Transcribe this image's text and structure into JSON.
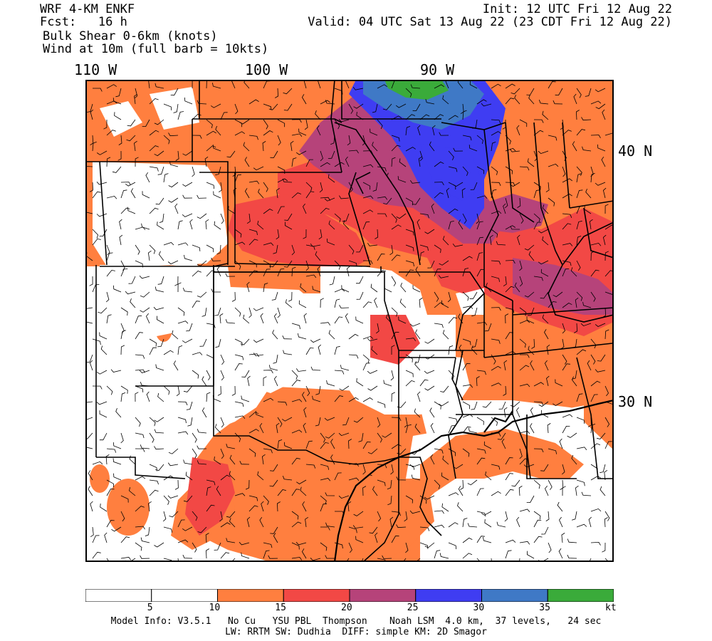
{
  "header": {
    "model": "WRF 4-KM ENKF",
    "forecast_hour": "Fcst:   16 h",
    "field_line1": "Bulk Shear 0-6km (knots)",
    "field_line2": "Wind at 10m (full barb = 10kts)",
    "init": "Init: 12 UTC Fri 12 Aug 22",
    "valid": "Valid: 04 UTC Sat 13 Aug 22 (23 CDT Fri 12 Aug 22)"
  },
  "map": {
    "lon_labels": [
      "110 W",
      "100 W",
      "90 W"
    ],
    "lat_labels": [
      "40 N",
      "30 N"
    ]
  },
  "legend": {
    "bins": [
      {
        "from": 0,
        "to": 5,
        "color": "#ffffff"
      },
      {
        "from": 5,
        "to": 10,
        "color": "#ffffff"
      },
      {
        "from": 10,
        "to": 15,
        "color": "#ff7f3f"
      },
      {
        "from": 15,
        "to": 20,
        "color": "#f24845"
      },
      {
        "from": 20,
        "to": 25,
        "color": "#b6437a"
      },
      {
        "from": 25,
        "to": 30,
        "color": "#3f3df2"
      },
      {
        "from": 30,
        "to": 35,
        "color": "#3f79c6"
      },
      {
        "from": 35,
        "to": 40,
        "color": "#3aab3a"
      }
    ],
    "tick_labels": [
      "5",
      "10",
      "15",
      "20",
      "25",
      "30",
      "35"
    ],
    "unit": "kt"
  },
  "footer": {
    "line1": "Model Info: V3.5.1   No Cu   YSU PBL  Thompson    Noah LSM  4.0 km,  37 levels,   24 sec",
    "line2": "LW: RRTM SW: Dudhia  DIFF: simple KM: 2D Smagor"
  }
}
